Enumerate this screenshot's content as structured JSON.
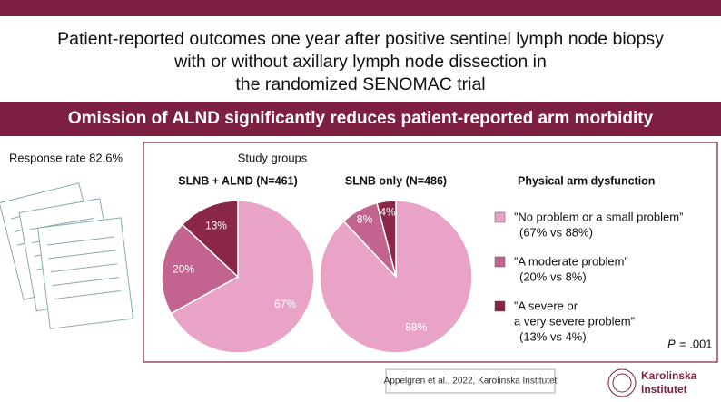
{
  "header": {
    "title_lines": [
      "Patient-reported outcomes one year after positive sentinel lymph node biopsy",
      "with or without axillary lymph node dissection in",
      "the randomized SENOMAC trial"
    ],
    "banner": "Omission of ALND significantly reduces patient-reported arm morbidity"
  },
  "response_rate": "Response rate 82.6%",
  "panel_title": "Study groups",
  "chart_data": [
    {
      "type": "pie",
      "title": "SLNB + ALND (N=461)",
      "values": [
        67,
        20,
        13
      ],
      "value_labels": [
        "67%",
        "20%",
        "13%"
      ],
      "colors": [
        "#e9a3c6",
        "#c2648f",
        "#8a2748"
      ]
    },
    {
      "type": "pie",
      "title": "SLNB only (N=486)",
      "values": [
        88,
        8,
        4
      ],
      "value_labels": [
        "88%",
        "8%",
        "4%"
      ],
      "colors": [
        "#e9a3c6",
        "#c2648f",
        "#8a2748"
      ]
    }
  ],
  "legend": {
    "title": "Physical arm dysfunction",
    "items": [
      {
        "lines": [
          "”No problem or a small problem”"
        ],
        "note": "(67% vs 88%)"
      },
      {
        "lines": [
          "”A moderate problem”"
        ],
        "note": "(20% vs 8%)"
      },
      {
        "lines": [
          "”A severe or",
          "a very severe problem”"
        ],
        "note": "(13% vs 4%)"
      }
    ]
  },
  "p_value": {
    "symbol": "P",
    "text": "= .001"
  },
  "citation": "Appelgren et al., 2022, Karolinska Institutet",
  "logo": {
    "lines": [
      "Karolinska",
      "Institutet"
    ]
  }
}
